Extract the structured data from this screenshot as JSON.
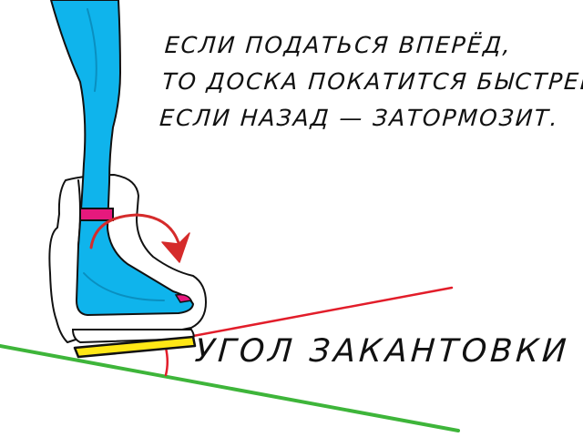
{
  "caption": {
    "lines": [
      "ЕСЛИ ПОДАТЬСЯ ВПЕРЁД,",
      "ТО ДОСКА ПОКАТИТСЯ БЫСТРЕЕ,",
      "ЕСЛИ НАЗАД — ЗАТОРМОЗИТ."
    ]
  },
  "angle_label": "УГОЛ ЗАКАНТОВКИ",
  "colors": {
    "leg": "#0fb4ec",
    "strap": "#e6197d",
    "arrow": "#d52b2b",
    "board": "#ffe716",
    "slope": "#3eb53a",
    "edge_line": "#e21d2a",
    "outline": "#111111"
  }
}
